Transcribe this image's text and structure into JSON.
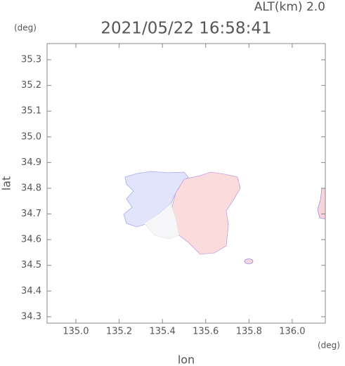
{
  "chart_data": {
    "type": "map",
    "title": "2021/05/22 16:58:41",
    "subtitle": "ALT(km) 2.0",
    "x_label": "lon",
    "y_label": "lat",
    "x_unit": "(deg)",
    "y_unit": "(deg)",
    "xlim": [
      134.867,
      136.153
    ],
    "ylim": [
      34.275,
      35.363
    ],
    "xticks": [
      {
        "value": 135,
        "label": "135.0"
      },
      135.2,
      135.4,
      135.6,
      135.8,
      {
        "value": 136,
        "label": "136.0"
      }
    ],
    "yticks": [
      34.3,
      34.4,
      34.5,
      34.6,
      34.7,
      34.8,
      34.9,
      {
        "value": 35,
        "label": "35.0"
      },
      35.1,
      35.2,
      35.3
    ]
  }
}
